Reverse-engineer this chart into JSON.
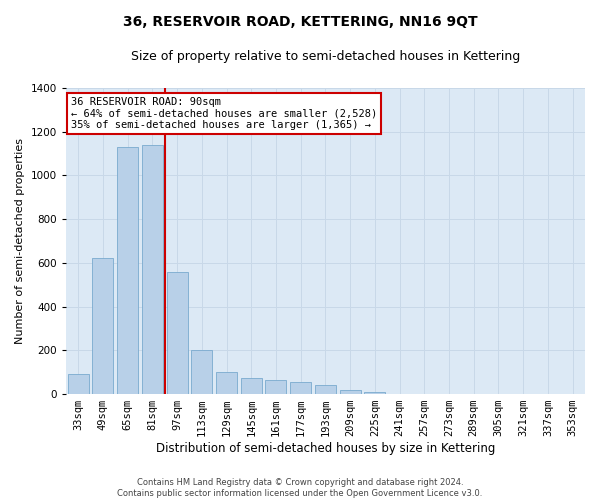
{
  "title": "36, RESERVOIR ROAD, KETTERING, NN16 9QT",
  "subtitle": "Size of property relative to semi-detached houses in Kettering",
  "xlabel": "Distribution of semi-detached houses by size in Kettering",
  "ylabel": "Number of semi-detached properties",
  "footer_line1": "Contains HM Land Registry data © Crown copyright and database right 2024.",
  "footer_line2": "Contains public sector information licensed under the Open Government Licence v3.0.",
  "categories": [
    "33sqm",
    "49sqm",
    "65sqm",
    "81sqm",
    "97sqm",
    "113sqm",
    "129sqm",
    "145sqm",
    "161sqm",
    "177sqm",
    "193sqm",
    "209sqm",
    "225sqm",
    "241sqm",
    "257sqm",
    "273sqm",
    "289sqm",
    "305sqm",
    "321sqm",
    "337sqm",
    "353sqm"
  ],
  "values": [
    90,
    620,
    1130,
    1140,
    560,
    200,
    100,
    75,
    65,
    55,
    40,
    20,
    10,
    0,
    0,
    0,
    0,
    0,
    0,
    0,
    0
  ],
  "bar_color": "#b8d0e8",
  "bar_edge_color": "#7aaace",
  "annotation_text": "36 RESERVOIR ROAD: 90sqm\n← 64% of semi-detached houses are smaller (2,528)\n35% of semi-detached houses are larger (1,365) →",
  "annotation_box_facecolor": "#ffffff",
  "annotation_box_edgecolor": "#cc0000",
  "vline_color": "#cc0000",
  "vline_x": 3.5,
  "ylim": [
    0,
    1400
  ],
  "yticks": [
    0,
    200,
    400,
    600,
    800,
    1000,
    1200,
    1400
  ],
  "grid_color": "#c8d8e8",
  "plot_bg_color": "#dce9f5",
  "fig_bg_color": "#ffffff",
  "title_fontsize": 10,
  "subtitle_fontsize": 9,
  "xlabel_fontsize": 8.5,
  "ylabel_fontsize": 8,
  "tick_fontsize": 7.5,
  "annotation_fontsize": 7.5,
  "footer_fontsize": 6
}
